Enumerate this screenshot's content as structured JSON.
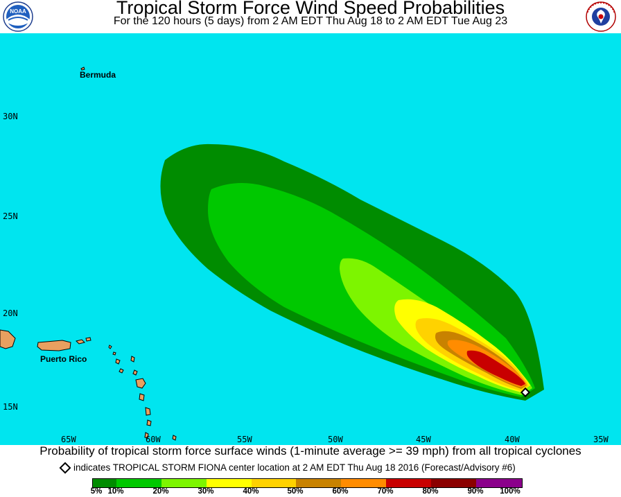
{
  "header": {
    "title": "Tropical Storm Force Wind Speed Probabilities",
    "subtitle": "For the 120 hours (5 days) from 2 AM EDT Thu Aug 18 to 2 AM EDT Tue Aug 23",
    "logo_left": "NOAA",
    "logo_right": "NATIONAL WEATHER SERVICE"
  },
  "map": {
    "ocean_color": "#00e5ef",
    "land_color": "#e8a060",
    "lat_labels": [
      "30N",
      "25N",
      "20N",
      "15N"
    ],
    "lon_labels": [
      "65W",
      "60W",
      "55W",
      "50W",
      "45W",
      "40W",
      "35W"
    ],
    "places": {
      "bermuda": "Bermuda",
      "puerto_rico": "Puerto Rico"
    },
    "storm_center": {
      "name": "TROPICAL STORM FIONA",
      "lat": 15.9,
      "lon": -39.3
    }
  },
  "caption": "Probability of tropical storm force surface winds (1-minute average >= 39 mph) from all tropical cyclones",
  "marker_note": "indicates TROPICAL STORM FIONA center location at 2 AM EDT Thu Aug 18 2016 (Forecast/Advisory #6)",
  "legend": {
    "bins": [
      {
        "color": "#008c00",
        "width": 34
      },
      {
        "color": "#00c800",
        "width": 65
      },
      {
        "color": "#7df500",
        "width": 65
      },
      {
        "color": "#ffff00",
        "width": 65
      },
      {
        "color": "#ffd200",
        "width": 64
      },
      {
        "color": "#c88200",
        "width": 65
      },
      {
        "color": "#ff8c00",
        "width": 65
      },
      {
        "color": "#c80000",
        "width": 65
      },
      {
        "color": "#8b0000",
        "width": 65
      },
      {
        "color": "#8b008b",
        "width": 66
      }
    ],
    "labels": [
      "5%",
      "10%",
      "20%",
      "30%",
      "40%",
      "50%",
      "60%",
      "70%",
      "80%",
      "90%",
      "100%"
    ]
  }
}
